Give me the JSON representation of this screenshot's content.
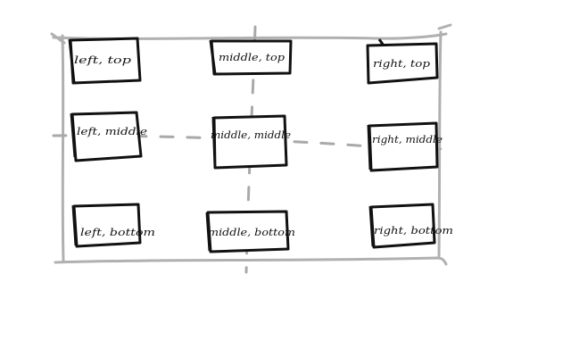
{
  "colors": {
    "frame": "#b0b0b0",
    "axis": "#a9a9a9",
    "box": "#111111",
    "label": "#111111",
    "background": "#ffffff"
  },
  "boxes": [
    {
      "id": "left-top",
      "label": "left, top"
    },
    {
      "id": "middle-top",
      "label": "middle, top"
    },
    {
      "id": "right-top",
      "label": "right, top"
    },
    {
      "id": "left-middle",
      "label": "left, middle"
    },
    {
      "id": "middle-middle",
      "label": "middle, middle"
    },
    {
      "id": "right-middle",
      "label": "right, middle"
    },
    {
      "id": "left-bottom",
      "label": "left, bottom"
    },
    {
      "id": "middle-bottom",
      "label": "middle, bottom"
    },
    {
      "id": "right-bottom",
      "label": "right, bottom"
    }
  ]
}
